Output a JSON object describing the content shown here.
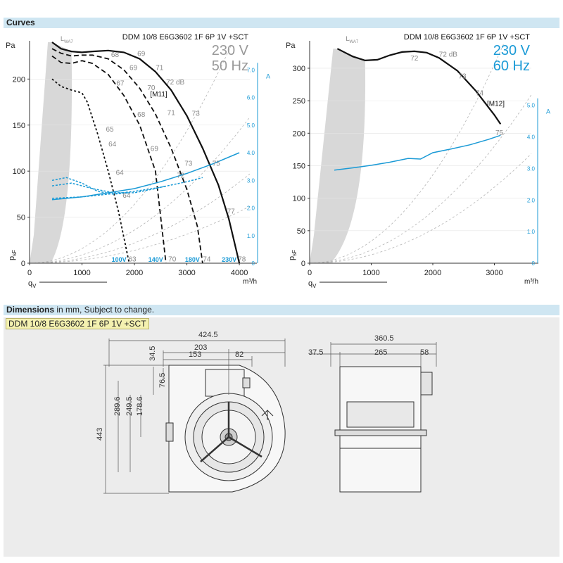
{
  "sections": {
    "curves_title": "Curves",
    "dimensions_title": "Dimensions",
    "dimensions_note": " in mm, Subject to change.",
    "model_tag": "DDM 10/8 E6G3602 1F 6P 1V +SCT"
  },
  "colors": {
    "accent": "#1a9ad6",
    "header": "#cfe6f2",
    "shade": "#d8d8d8",
    "model_tag": "#f4f1b0"
  },
  "chart_data": [
    {
      "type": "line",
      "title": "DDM 10/8 E6G3602 1F 6P 1V +SCT",
      "voltage": "230 V",
      "frequency": "50 Hz",
      "curve_id": "[M11]",
      "lwa_label": "L",
      "lwa_sub": "WA7",
      "ylabel_left": "Pa",
      "ylabel_right": "A",
      "ylabel_p": "p",
      "ylabel_p_sub": "sF",
      "xlabel_left": "q",
      "xlabel_left_sub": "V",
      "xlabel_right": "m³/h",
      "xlim": [
        0,
        4200
      ],
      "ylim": [
        0,
        240
      ],
      "y2lim": [
        0,
        8
      ],
      "xticks": [
        "0",
        "1000",
        "2000",
        "3000",
        "4000"
      ],
      "yticks": [
        "0",
        "50",
        "100",
        "150",
        "200"
      ],
      "y2ticks": [
        "0",
        "1.0",
        "2.0",
        "3.0",
        "4.0",
        "5.0",
        "6.0",
        "7.0"
      ],
      "speed_labels": [
        "100V",
        "140V",
        "180V",
        "230V"
      ],
      "series": [
        {
          "name": "230V",
          "x": [
            430,
            600,
            800,
            1000,
            1200,
            1500,
            1800,
            2100,
            2400,
            2700,
            3000,
            3300,
            3600,
            3800,
            4000
          ],
          "y": [
            240,
            233,
            230,
            229,
            230,
            231,
            229,
            222,
            208,
            188,
            160,
            125,
            85,
            48,
            0
          ]
        },
        {
          "name": "180V",
          "x": [
            430,
            600,
            800,
            1000,
            1200,
            1500,
            1800,
            2100,
            2400,
            2700,
            3000,
            3200,
            3300
          ],
          "y": [
            233,
            228,
            225,
            226,
            226,
            222,
            210,
            190,
            162,
            125,
            80,
            40,
            0
          ]
        },
        {
          "name": "140V",
          "x": [
            430,
            600,
            800,
            1000,
            1200,
            1500,
            1800,
            2100,
            2400,
            2600
          ],
          "y": [
            225,
            218,
            217,
            220,
            217,
            205,
            182,
            150,
            100,
            0
          ]
        },
        {
          "name": "100V",
          "x": [
            430,
            600,
            800,
            1000,
            1100,
            1300,
            1500,
            1700,
            1900
          ],
          "y": [
            200,
            192,
            188,
            185,
            175,
            140,
            100,
            55,
            0
          ]
        },
        {
          "name": "I 230V",
          "x": [
            430,
            1000,
            1500,
            2000,
            2500,
            3000,
            3500,
            4000
          ],
          "y": [
            2.3,
            2.4,
            2.55,
            2.7,
            2.95,
            3.25,
            3.6,
            4.0
          ]
        },
        {
          "name": "I 180V",
          "x": [
            430,
            1000,
            1500,
            2000,
            2500,
            3000,
            3300
          ],
          "y": [
            2.35,
            2.4,
            2.5,
            2.6,
            2.75,
            2.95,
            3.1
          ]
        },
        {
          "name": "I 140V",
          "x": [
            430,
            800,
            1200,
            1600,
            2000,
            2400,
            2600
          ],
          "y": [
            2.8,
            2.9,
            2.7,
            2.55,
            2.55,
            2.7,
            2.8
          ]
        },
        {
          "name": "I 100V",
          "x": [
            430,
            700,
            1000,
            1300,
            1600,
            1900
          ],
          "y": [
            3.0,
            3.1,
            2.9,
            2.6,
            2.5,
            2.55
          ]
        }
      ],
      "dB_labels": [
        {
          "t": "68",
          "x": 1630,
          "y": 224
        },
        {
          "t": "69",
          "x": 2130,
          "y": 225
        },
        {
          "t": "69",
          "x": 1980,
          "y": 210
        },
        {
          "t": "71",
          "x": 2480,
          "y": 210
        },
        {
          "t": "72 dB",
          "x": 2780,
          "y": 194
        },
        {
          "t": "67",
          "x": 1730,
          "y": 193
        },
        {
          "t": "70",
          "x": 2320,
          "y": 188
        },
        {
          "t": "68",
          "x": 2130,
          "y": 159
        },
        {
          "t": "71",
          "x": 2700,
          "y": 161
        },
        {
          "t": "73",
          "x": 3170,
          "y": 160
        },
        {
          "t": "65",
          "x": 1530,
          "y": 143
        },
        {
          "t": "64",
          "x": 1580,
          "y": 127
        },
        {
          "t": "69",
          "x": 2380,
          "y": 122
        },
        {
          "t": "73",
          "x": 3030,
          "y": 106
        },
        {
          "t": "75",
          "x": 3560,
          "y": 106
        },
        {
          "t": "64",
          "x": 1720,
          "y": 96
        },
        {
          "t": "72",
          "x": 2880,
          "y": 93
        },
        {
          "t": "64",
          "x": 1850,
          "y": 71
        },
        {
          "t": "77",
          "x": 3840,
          "y": 54
        },
        {
          "t": "63",
          "x": 1960,
          "y": 2
        },
        {
          "t": "70",
          "x": 2720,
          "y": 2
        },
        {
          "t": "74",
          "x": 3380,
          "y": 2
        },
        {
          "t": "78",
          "x": 4050,
          "y": 2
        }
      ]
    },
    {
      "type": "line",
      "title": "DDM 10/8 E6G3602 1F 6P 1V +SCT",
      "voltage": "230 V",
      "frequency": "60 Hz",
      "curve_id": "[M12]",
      "lwa_label": "L",
      "lwa_sub": "WA7",
      "ylabel_left": "Pa",
      "ylabel_right": "A",
      "ylabel_p": "p",
      "ylabel_p_sub": "sF",
      "xlabel_left": "q",
      "xlabel_left_sub": "V",
      "xlabel_right": "m³/h",
      "xlim": [
        0,
        3600
      ],
      "ylim": [
        0,
        340
      ],
      "y2lim": [
        0,
        7
      ],
      "xticks": [
        "0",
        "1000",
        "2000",
        "3000"
      ],
      "yticks": [
        "0",
        "50",
        "100",
        "150",
        "200",
        "250",
        "300"
      ],
      "y2ticks": [
        "0",
        "1.0",
        "2.0",
        "3.0",
        "4.0",
        "5.0"
      ],
      "series": [
        {
          "name": "230V",
          "x": [
            450,
            700,
            900,
            1100,
            1300,
            1500,
            1700,
            1900,
            2100,
            2400,
            2700,
            3000,
            3100
          ],
          "y": [
            330,
            318,
            312,
            313,
            320,
            325,
            326,
            324,
            316,
            296,
            265,
            228,
            214
          ]
        },
        {
          "name": "I 230V",
          "x": [
            400,
            700,
            1000,
            1300,
            1600,
            1800,
            2000,
            2300,
            2600,
            2900,
            3100
          ],
          "y": [
            2.95,
            3.02,
            3.1,
            3.2,
            3.32,
            3.3,
            3.5,
            3.62,
            3.75,
            3.92,
            4.05
          ]
        }
      ],
      "dB_labels": [
        {
          "t": "72",
          "x": 1700,
          "y": 312
        },
        {
          "t": "72 dB",
          "x": 2250,
          "y": 318
        },
        {
          "t": "73",
          "x": 2480,
          "y": 284
        },
        {
          "t": "74",
          "x": 2760,
          "y": 258
        },
        {
          "t": "75",
          "x": 3080,
          "y": 197
        }
      ]
    }
  ],
  "dimensions": {
    "front_top": [
      "424.5",
      "203",
      "153",
      "82"
    ],
    "front_left": [
      "34.5",
      "76.5",
      "178.6",
      "249.5",
      "289.6",
      "443"
    ],
    "side_top": [
      "360.5",
      "37.5",
      "265",
      "58"
    ]
  }
}
